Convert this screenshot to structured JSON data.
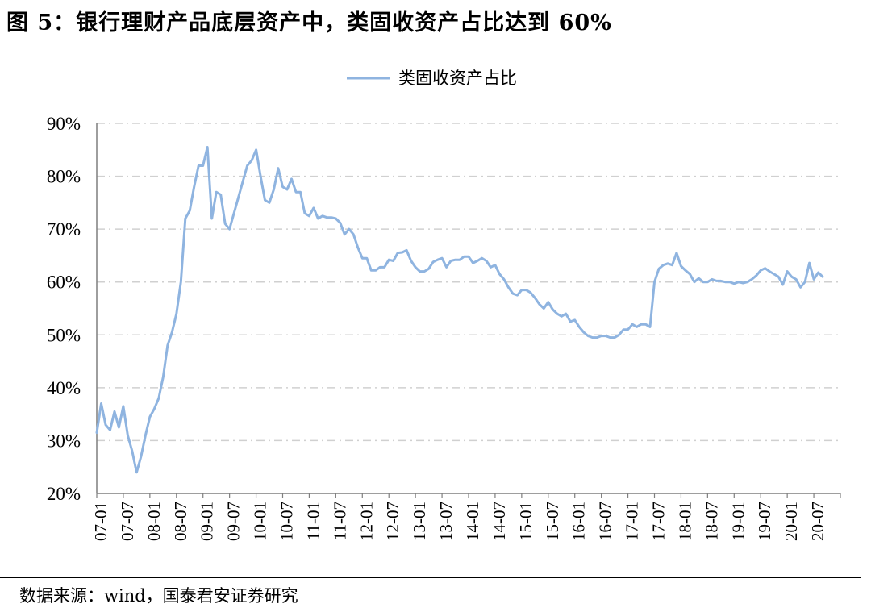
{
  "figure": {
    "title": "图 5：银行理财产品底层资产中，类固收资产占比达到 60%",
    "source": "数据来源：wind，国泰君安证券研究"
  },
  "colors": {
    "series": "#8fb4e0",
    "grid": "#d0d0d0",
    "axis": "#7f7f7f"
  },
  "chart_data": {
    "type": "line",
    "title": "",
    "xlabel": "",
    "ylabel": "",
    "ylim": [
      0.2,
      0.9
    ],
    "yticks": [
      "20%",
      "30%",
      "40%",
      "50%",
      "60%",
      "70%",
      "80%",
      "90%"
    ],
    "xticks": [
      "07-01",
      "07-07",
      "08-01",
      "08-07",
      "09-01",
      "09-07",
      "10-01",
      "10-07",
      "11-01",
      "11-07",
      "12-01",
      "12-07",
      "13-01",
      "13-07",
      "14-01",
      "14-07",
      "15-01",
      "15-07",
      "16-01",
      "16-07",
      "17-01",
      "17-07",
      "18-01",
      "18-07",
      "19-01",
      "19-07",
      "20-01",
      "20-07"
    ],
    "grid": "horizontal-dashdot",
    "legend_position": "top-center",
    "series": [
      {
        "name": "类固收资产占比",
        "points": [
          [
            0.0,
            0.315
          ],
          [
            0.5,
            0.37
          ],
          [
            1.0,
            0.33
          ],
          [
            1.5,
            0.32
          ],
          [
            2.0,
            0.355
          ],
          [
            2.5,
            0.325
          ],
          [
            3.0,
            0.365
          ],
          [
            3.5,
            0.31
          ],
          [
            4.0,
            0.28
          ],
          [
            4.5,
            0.24
          ],
          [
            5.0,
            0.27
          ],
          [
            5.5,
            0.31
          ],
          [
            6.0,
            0.345
          ],
          [
            6.5,
            0.36
          ],
          [
            7.0,
            0.38
          ],
          [
            7.5,
            0.42
          ],
          [
            8.0,
            0.48
          ],
          [
            8.5,
            0.505
          ],
          [
            9.0,
            0.54
          ],
          [
            9.5,
            0.6
          ],
          [
            10.0,
            0.72
          ],
          [
            10.5,
            0.735
          ],
          [
            11.0,
            0.78
          ],
          [
            11.5,
            0.82
          ],
          [
            12.0,
            0.82
          ],
          [
            12.5,
            0.855
          ],
          [
            13.0,
            0.72
          ],
          [
            13.5,
            0.77
          ],
          [
            14.0,
            0.765
          ],
          [
            14.5,
            0.71
          ],
          [
            15.0,
            0.7
          ],
          [
            15.5,
            0.73
          ],
          [
            16.0,
            0.76
          ],
          [
            16.5,
            0.79
          ],
          [
            17.0,
            0.82
          ],
          [
            17.5,
            0.83
          ],
          [
            18.0,
            0.85
          ],
          [
            18.5,
            0.8
          ],
          [
            19.0,
            0.755
          ],
          [
            19.5,
            0.75
          ],
          [
            20.0,
            0.775
          ],
          [
            20.5,
            0.815
          ],
          [
            21.0,
            0.78
          ],
          [
            21.5,
            0.775
          ],
          [
            22.0,
            0.795
          ],
          [
            22.5,
            0.77
          ],
          [
            23.0,
            0.77
          ],
          [
            23.5,
            0.73
          ],
          [
            24.0,
            0.725
          ],
          [
            24.5,
            0.74
          ],
          [
            25.0,
            0.72
          ],
          [
            25.5,
            0.725
          ],
          [
            26.0,
            0.722
          ],
          [
            26.5,
            0.722
          ],
          [
            27.0,
            0.72
          ],
          [
            27.5,
            0.712
          ],
          [
            28.0,
            0.69
          ],
          [
            28.5,
            0.7
          ],
          [
            29.0,
            0.69
          ],
          [
            29.5,
            0.665
          ],
          [
            30.0,
            0.645
          ],
          [
            30.5,
            0.645
          ],
          [
            31.0,
            0.622
          ],
          [
            31.5,
            0.622
          ],
          [
            32.0,
            0.628
          ],
          [
            32.5,
            0.628
          ],
          [
            33.0,
            0.642
          ],
          [
            33.5,
            0.64
          ],
          [
            34.0,
            0.655
          ],
          [
            34.5,
            0.656
          ],
          [
            35.0,
            0.66
          ],
          [
            35.5,
            0.64
          ],
          [
            36.0,
            0.628
          ],
          [
            36.5,
            0.62
          ],
          [
            37.0,
            0.62
          ],
          [
            37.5,
            0.625
          ],
          [
            38.0,
            0.638
          ],
          [
            38.5,
            0.642
          ],
          [
            39.0,
            0.645
          ],
          [
            39.5,
            0.628
          ],
          [
            40.0,
            0.64
          ],
          [
            40.5,
            0.642
          ],
          [
            41.0,
            0.642
          ],
          [
            41.5,
            0.648
          ],
          [
            42.0,
            0.648
          ],
          [
            42.5,
            0.636
          ],
          [
            43.0,
            0.64
          ],
          [
            43.5,
            0.645
          ],
          [
            44.0,
            0.64
          ],
          [
            44.5,
            0.628
          ],
          [
            45.0,
            0.632
          ],
          [
            45.5,
            0.615
          ],
          [
            46.0,
            0.605
          ],
          [
            46.5,
            0.59
          ],
          [
            47.0,
            0.578
          ],
          [
            47.5,
            0.575
          ],
          [
            48.0,
            0.585
          ],
          [
            48.5,
            0.585
          ],
          [
            49.0,
            0.58
          ],
          [
            49.5,
            0.57
          ],
          [
            50.0,
            0.558
          ],
          [
            50.5,
            0.55
          ],
          [
            51.0,
            0.562
          ],
          [
            51.5,
            0.548
          ],
          [
            52.0,
            0.54
          ],
          [
            52.5,
            0.535
          ],
          [
            53.0,
            0.54
          ],
          [
            53.5,
            0.525
          ],
          [
            54.0,
            0.528
          ],
          [
            54.5,
            0.515
          ],
          [
            55.0,
            0.505
          ],
          [
            55.5,
            0.498
          ],
          [
            56.0,
            0.495
          ],
          [
            56.5,
            0.495
          ],
          [
            57.0,
            0.498
          ],
          [
            57.5,
            0.498
          ],
          [
            58.0,
            0.495
          ],
          [
            58.5,
            0.495
          ],
          [
            59.0,
            0.5
          ],
          [
            59.5,
            0.51
          ],
          [
            60.0,
            0.51
          ],
          [
            60.5,
            0.52
          ],
          [
            61.0,
            0.515
          ],
          [
            61.5,
            0.52
          ],
          [
            62.0,
            0.52
          ],
          [
            62.5,
            0.515
          ],
          [
            63.0,
            0.6
          ],
          [
            63.5,
            0.625
          ],
          [
            64.0,
            0.632
          ],
          [
            64.5,
            0.635
          ],
          [
            65.0,
            0.632
          ],
          [
            65.5,
            0.655
          ],
          [
            66.0,
            0.63
          ],
          [
            66.5,
            0.622
          ],
          [
            67.0,
            0.615
          ],
          [
            67.5,
            0.6
          ],
          [
            68.0,
            0.607
          ],
          [
            68.5,
            0.6
          ],
          [
            69.0,
            0.6
          ],
          [
            69.5,
            0.605
          ],
          [
            70.0,
            0.602
          ],
          [
            70.5,
            0.602
          ],
          [
            71.0,
            0.6
          ],
          [
            71.5,
            0.6
          ],
          [
            72.0,
            0.597
          ],
          [
            72.5,
            0.6
          ],
          [
            73.0,
            0.598
          ],
          [
            73.5,
            0.6
          ],
          [
            74.0,
            0.605
          ],
          [
            74.5,
            0.612
          ],
          [
            75.0,
            0.622
          ],
          [
            75.5,
            0.626
          ],
          [
            76.0,
            0.62
          ],
          [
            76.5,
            0.615
          ],
          [
            77.0,
            0.61
          ],
          [
            77.5,
            0.595
          ],
          [
            78.0,
            0.62
          ],
          [
            78.5,
            0.61
          ],
          [
            79.0,
            0.605
          ],
          [
            79.5,
            0.59
          ],
          [
            80.0,
            0.6
          ],
          [
            80.5,
            0.636
          ],
          [
            81.0,
            0.605
          ],
          [
            81.5,
            0.618
          ],
          [
            82.0,
            0.61
          ]
        ]
      }
    ]
  }
}
